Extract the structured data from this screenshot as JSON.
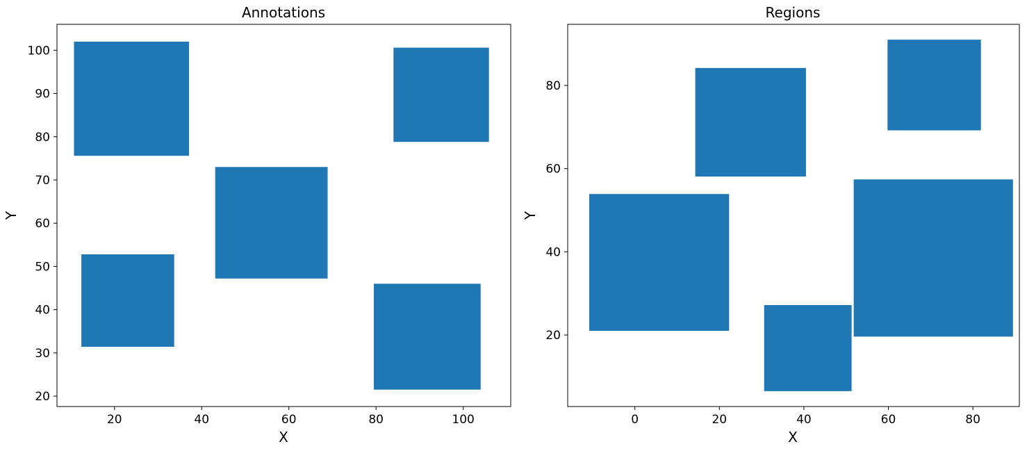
{
  "chart_data": [
    {
      "type": "rectangles",
      "title": "Annotations",
      "xlabel": "X",
      "ylabel": "Y",
      "xlim": [
        6.8,
        110.9
      ],
      "ylim": [
        17.6,
        106.0
      ],
      "xticks": [
        20,
        40,
        60,
        80,
        100
      ],
      "yticks": [
        20,
        30,
        40,
        50,
        60,
        70,
        80,
        90,
        100
      ],
      "color": "#1f77b4",
      "rects": [
        {
          "x0": 10.7,
          "x1": 37.1,
          "y0": 75.6,
          "y1": 102.0
        },
        {
          "x0": 12.4,
          "x1": 33.7,
          "y0": 31.4,
          "y1": 52.8
        },
        {
          "x0": 43.1,
          "x1": 68.9,
          "y0": 47.2,
          "y1": 73.0
        },
        {
          "x0": 84.0,
          "x1": 105.9,
          "y0": 78.8,
          "y1": 100.6
        },
        {
          "x0": 79.5,
          "x1": 104.0,
          "y0": 21.5,
          "y1": 46.0
        }
      ]
    },
    {
      "type": "rectangles",
      "title": "Regions",
      "xlabel": "X",
      "ylabel": "Y",
      "xlim": [
        -15.9,
        91.0
      ],
      "ylim": [
        2.8,
        94.7
      ],
      "xticks": [
        0,
        20,
        40,
        60,
        80
      ],
      "yticks": [
        20,
        40,
        60,
        80
      ],
      "color": "#1f77b4",
      "rects": [
        {
          "x0": 14.3,
          "x1": 40.5,
          "y0": 58.1,
          "y1": 84.2
        },
        {
          "x0": 59.8,
          "x1": 81.9,
          "y0": 69.2,
          "y1": 91.0
        },
        {
          "x0": -10.8,
          "x1": 22.3,
          "y0": 21.0,
          "y1": 53.9
        },
        {
          "x0": 51.8,
          "x1": 89.5,
          "y0": 19.6,
          "y1": 57.4
        },
        {
          "x0": 30.6,
          "x1": 51.3,
          "y0": 6.5,
          "y1": 27.2
        }
      ]
    }
  ]
}
